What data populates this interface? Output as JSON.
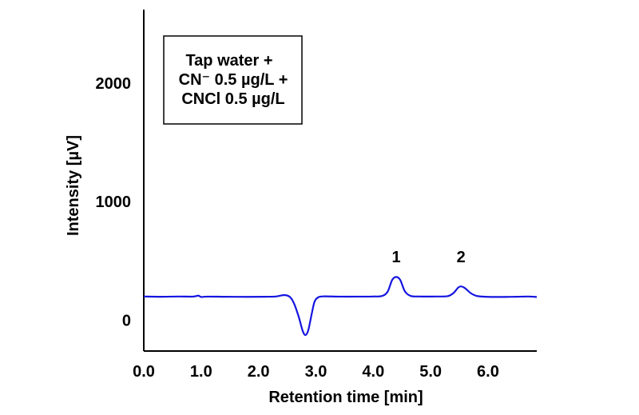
{
  "chart_data": {
    "type": "line",
    "xlabel": "Retention time [min]",
    "ylabel": "Intensity [µV]",
    "xlim": [
      0.0,
      6.85
    ],
    "ylim": [
      -260,
      2620
    ],
    "x_ticks": [
      0.0,
      1.0,
      2.0,
      3.0,
      4.0,
      5.0,
      6.0
    ],
    "x_tick_labels": [
      "0.0",
      "1.0",
      "2.0",
      "3.0",
      "4.0",
      "5.0",
      "6.0"
    ],
    "y_ticks": [
      0,
      1000,
      2000
    ],
    "y_tick_labels": [
      "0",
      "1000",
      "2000"
    ],
    "grid": false,
    "annotation_box": {
      "lines": [
        "Tap water +",
        "CN⁻ 0.5 µg/L +",
        "CNCl 0.5 µg/L"
      ]
    },
    "peak_labels": [
      {
        "text": "1",
        "x": 4.4,
        "y": 490
      },
      {
        "text": "2",
        "x": 5.53,
        "y": 490
      }
    ],
    "series": [
      {
        "color": "#1515e0",
        "points": [
          [
            0.0,
            200
          ],
          [
            0.3,
            198
          ],
          [
            0.6,
            200
          ],
          [
            0.85,
            199
          ],
          [
            0.95,
            207
          ],
          [
            1.0,
            196
          ],
          [
            1.1,
            199
          ],
          [
            1.4,
            198
          ],
          [
            1.8,
            197
          ],
          [
            2.1,
            198
          ],
          [
            2.3,
            200
          ],
          [
            2.45,
            212
          ],
          [
            2.55,
            195
          ],
          [
            2.62,
            140
          ],
          [
            2.7,
            30
          ],
          [
            2.77,
            -90
          ],
          [
            2.82,
            -125
          ],
          [
            2.87,
            -80
          ],
          [
            2.93,
            60
          ],
          [
            2.98,
            160
          ],
          [
            3.05,
            195
          ],
          [
            3.15,
            201
          ],
          [
            3.4,
            199
          ],
          [
            3.7,
            199
          ],
          [
            4.0,
            200
          ],
          [
            4.15,
            204
          ],
          [
            4.25,
            240
          ],
          [
            4.33,
            340
          ],
          [
            4.4,
            365
          ],
          [
            4.47,
            340
          ],
          [
            4.55,
            245
          ],
          [
            4.65,
            205
          ],
          [
            4.8,
            200
          ],
          [
            5.1,
            200
          ],
          [
            5.3,
            203
          ],
          [
            5.4,
            230
          ],
          [
            5.48,
            275
          ],
          [
            5.53,
            285
          ],
          [
            5.6,
            270
          ],
          [
            5.7,
            228
          ],
          [
            5.8,
            205
          ],
          [
            5.95,
            198
          ],
          [
            6.2,
            196
          ],
          [
            6.5,
            198
          ],
          [
            6.7,
            200
          ],
          [
            6.85,
            196
          ]
        ]
      }
    ]
  }
}
